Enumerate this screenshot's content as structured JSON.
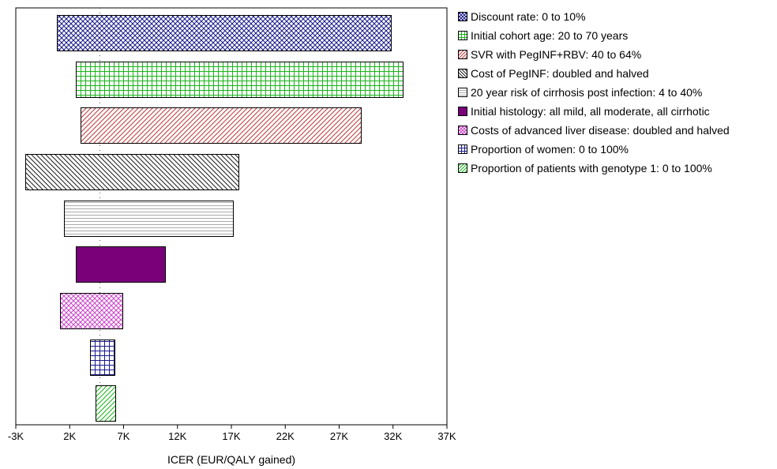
{
  "chart_data": {
    "type": "bar",
    "orientation": "horizontal",
    "title": "",
    "xlabel": "ICER (EUR/QALY gained)",
    "ylabel": "",
    "xlim": [
      -3000,
      37000
    ],
    "x_tick_labels": [
      "-3K",
      "2K",
      "7K",
      "12K",
      "17K",
      "22K",
      "27K",
      "32K",
      "37K"
    ],
    "base_case": 4800,
    "grid": false,
    "legend_position": "right",
    "series": [
      {
        "name": "Discount rate: 0 to 10%",
        "low": 800,
        "high": 31800,
        "pattern": "diag-cross",
        "color": "#1a1a8c"
      },
      {
        "name": "Initial cohort age: 20 to 70 years",
        "low": 2600,
        "high": 32900,
        "pattern": "grid",
        "color": "#18b418"
      },
      {
        "name": "SVR with PegINF+RBV: 40 to 64%",
        "low": 3000,
        "high": 29000,
        "pattern": "diag-right",
        "color": "#c03838"
      },
      {
        "name": "Cost of PegINF: doubled and halved",
        "low": -2100,
        "high": 17700,
        "pattern": "diag-left",
        "color": "#1a1a1a"
      },
      {
        "name": "20 year risk of cirrhosis post infection: 4 to 40%",
        "low": 1500,
        "high": 17200,
        "pattern": "horizontal",
        "color": "#aaaaaa"
      },
      {
        "name": "Initial histology: all mild, all moderate, all cirrhotic",
        "low": 2600,
        "high": 10900,
        "pattern": "solid",
        "color": "#7a007a"
      },
      {
        "name": "Costs of advanced liver disease: doubled and halved",
        "low": 1100,
        "high": 6900,
        "pattern": "diag-cross",
        "color": "#cc44cc"
      },
      {
        "name": "Proportion of women: 0 to 100%",
        "low": 3900,
        "high": 6200,
        "pattern": "grid",
        "color": "#1a1a8c"
      },
      {
        "name": "Proportion of patients with genotype 1: 0 to 100%",
        "low": 4400,
        "high": 6200,
        "pattern": "diag-right",
        "color": "#18b418"
      }
    ]
  }
}
